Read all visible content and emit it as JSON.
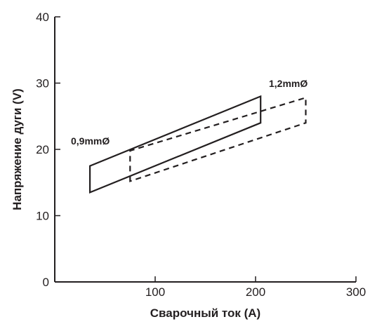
{
  "chart_data": {
    "type": "area",
    "title": "",
    "xlabel": "Сварочный ток (А)",
    "ylabel": "Напряжение дуги (V)",
    "xlim": [
      0,
      300
    ],
    "ylim": [
      0,
      40
    ],
    "xticks": [
      100,
      200,
      300
    ],
    "yticks": [
      0,
      10,
      20,
      30,
      40
    ],
    "x_tick_labels": [
      "100",
      "200",
      "300"
    ],
    "y_tick_labels": [
      "0",
      "10",
      "20",
      "30",
      "40"
    ],
    "grid": false,
    "legend": "none",
    "series": [
      {
        "name": "0,9mmØ",
        "style": "solid",
        "polygon": [
          {
            "x": 35,
            "y": 13.5
          },
          {
            "x": 35,
            "y": 17.5
          },
          {
            "x": 205,
            "y": 28
          },
          {
            "x": 205,
            "y": 24
          }
        ]
      },
      {
        "name": "1,2mmØ",
        "style": "dashed",
        "polygon": [
          {
            "x": 75,
            "y": 15.2
          },
          {
            "x": 75,
            "y": 19.8
          },
          {
            "x": 250,
            "y": 27.8
          },
          {
            "x": 250,
            "y": 24
          }
        ]
      }
    ],
    "annotations": [
      {
        "text": "0,9mmØ",
        "series": "0,9mmØ"
      },
      {
        "text": "1,2mmØ",
        "series": "1,2mmØ"
      }
    ],
    "colors": {
      "line": "#231f20",
      "axis": "#231f20"
    }
  }
}
